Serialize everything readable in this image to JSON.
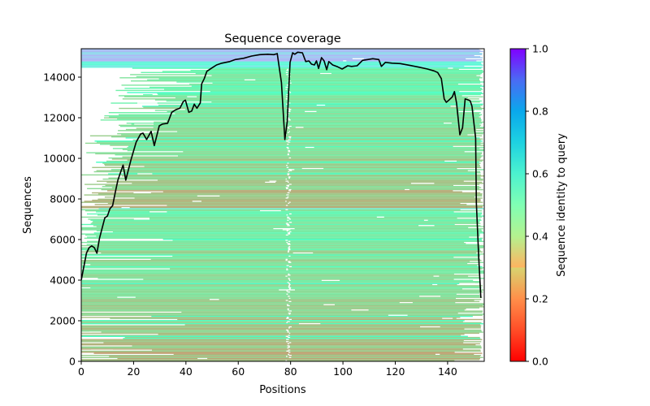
{
  "chart_data": {
    "type": "heatmap",
    "title": "Sequence coverage",
    "xlabel": "Positions",
    "ylabel": "Sequences",
    "xlim": [
      0,
      154
    ],
    "ylim": [
      0,
      15400
    ],
    "xticks": [
      0,
      20,
      40,
      60,
      80,
      100,
      120,
      140
    ],
    "yticks": [
      0,
      2000,
      4000,
      6000,
      8000,
      10000,
      12000,
      14000
    ],
    "xtick_labels": [
      "0",
      "20",
      "40",
      "60",
      "80",
      "100",
      "120",
      "140"
    ],
    "ytick_labels": [
      "0",
      "2000",
      "4000",
      "6000",
      "8000",
      "10000",
      "12000",
      "14000"
    ],
    "grid": false,
    "colorbar": {
      "label": "Sequence identity to query",
      "colormap": "rainbow_r",
      "range": [
        0.0,
        1.0
      ],
      "ticks": [
        0.0,
        0.2,
        0.4,
        0.6,
        0.8,
        1.0
      ],
      "tick_labels": [
        "0.0",
        "0.2",
        "0.4",
        "0.6",
        "0.8",
        "1.0"
      ],
      "placement": "right"
    },
    "identity_bands": [
      {
        "seq_from": 0,
        "seq_to": 1100,
        "identity": 0.22
      },
      {
        "seq_from": 1100,
        "seq_to": 1200,
        "identity": 0.42
      },
      {
        "seq_from": 1200,
        "seq_to": 2100,
        "identity": 0.25
      },
      {
        "seq_from": 2100,
        "seq_to": 2400,
        "identity": 0.27
      },
      {
        "seq_from": 2400,
        "seq_to": 3500,
        "identity": 0.29
      },
      {
        "seq_from": 3500,
        "seq_to": 4300,
        "identity": 0.31
      },
      {
        "seq_from": 4300,
        "seq_to": 5500,
        "identity": 0.31
      },
      {
        "seq_from": 5500,
        "seq_to": 6200,
        "identity": 0.35
      },
      {
        "seq_from": 6200,
        "seq_to": 7500,
        "identity": 0.37
      },
      {
        "seq_from": 7500,
        "seq_to": 7560,
        "identity": 0.68
      },
      {
        "seq_from": 7560,
        "seq_to": 8500,
        "identity": 0.22
      },
      {
        "seq_from": 8500,
        "seq_to": 10000,
        "identity": 0.29
      },
      {
        "seq_from": 10000,
        "seq_to": 11500,
        "identity": 0.3
      },
      {
        "seq_from": 11500,
        "seq_to": 13000,
        "identity": 0.33
      },
      {
        "seq_from": 13000,
        "seq_to": 14500,
        "identity": 0.37
      },
      {
        "seq_from": 14500,
        "seq_to": 14800,
        "identity": 0.62
      },
      {
        "seq_from": 14800,
        "seq_to": 15400,
        "identity": 0.75
      }
    ],
    "series": [
      {
        "name": "coverage",
        "color": "#000000",
        "x": [
          0,
          2,
          3,
          4,
          5,
          6,
          7,
          9,
          10,
          11,
          12,
          13,
          14,
          16,
          17,
          19,
          21,
          22.7,
          23.6,
          25,
          26.7,
          27.9,
          29.8,
          31,
          33,
          34.6,
          36.2,
          37.7,
          39,
          39.8,
          41.1,
          42.2,
          43.2,
          44.2,
          45.5,
          46,
          47,
          48,
          49.6,
          51.7,
          53.7,
          56.8,
          58.9,
          62,
          65.1,
          68.2,
          71.3,
          73.6,
          74.9,
          76.5,
          77.8,
          78.7,
          79.8,
          80.8,
          81.6,
          82.7,
          84.5,
          85.8,
          87,
          88,
          89.1,
          89.9,
          90.7,
          91.8,
          92.8,
          93.8,
          94.6,
          96.1,
          98,
          99.7,
          101.8,
          103.3,
          105.4,
          107.5,
          109.5,
          111.4,
          113.7,
          114.7,
          116.2,
          118.8,
          121.9,
          126.1,
          129.2,
          132.3,
          134.8,
          136.2,
          137.6,
          138.7,
          139.5,
          140.5,
          141.8,
          142.6,
          143.4,
          144.7,
          145.7,
          146.7,
          148.6,
          149.3,
          150.7,
          151,
          151.9,
          152.7
        ],
        "y": [
          4000,
          5330,
          5600,
          5690,
          5600,
          5330,
          6070,
          7070,
          7160,
          7530,
          7670,
          8330,
          8930,
          9670,
          8930,
          9930,
          10800,
          11200,
          11240,
          10930,
          11330,
          10630,
          11600,
          11690,
          11730,
          12270,
          12400,
          12470,
          12800,
          12870,
          12270,
          12330,
          12670,
          12470,
          12730,
          13670,
          13930,
          14290,
          14430,
          14600,
          14690,
          14770,
          14870,
          14930,
          15040,
          15110,
          15130,
          15110,
          15160,
          13730,
          10930,
          11800,
          14730,
          15200,
          15130,
          15230,
          15200,
          14770,
          14800,
          14640,
          14600,
          14800,
          14430,
          14960,
          14800,
          14370,
          14770,
          14600,
          14510,
          14400,
          14560,
          14530,
          14560,
          14830,
          14870,
          14910,
          14870,
          14530,
          14730,
          14690,
          14670,
          14570,
          14490,
          14400,
          14310,
          14230,
          13930,
          12930,
          12760,
          12870,
          13030,
          13290,
          12730,
          11160,
          11510,
          12930,
          12840,
          12570,
          11000,
          7800,
          5130,
          3130
        ]
      }
    ]
  }
}
